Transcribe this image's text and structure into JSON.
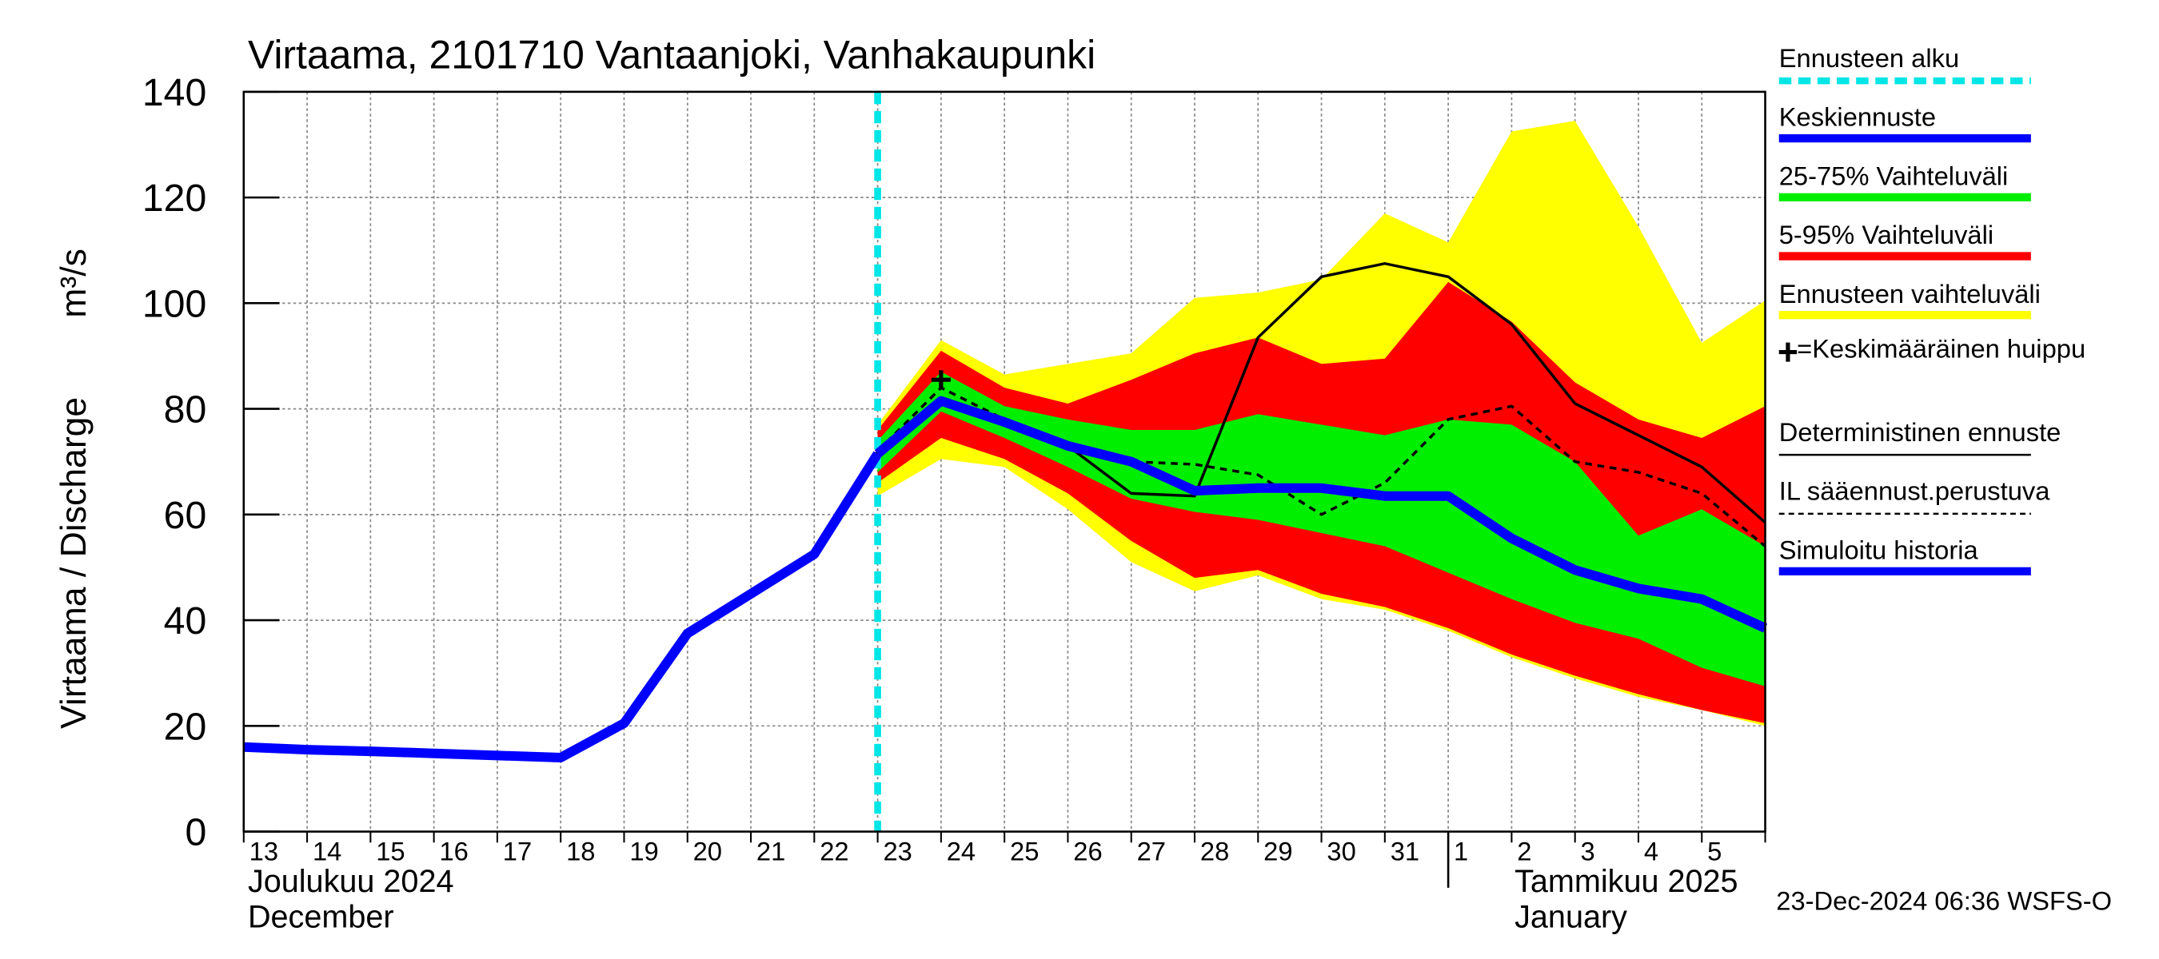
{
  "chart_data": {
    "type": "line",
    "title": "Virtaama, 2101710 Vantaanjoki, Vanhakaupunki",
    "y_label": "Virtaama / Discharge",
    "y_unit": "m³/s",
    "month_labels": [
      "Joulukuu  2024",
      "December",
      "Tammikuu  2025",
      "January"
    ],
    "footer": "23-Dec-2024 06:36 WSFS-O",
    "categories": [
      "13",
      "14",
      "15",
      "16",
      "17",
      "18",
      "19",
      "20",
      "21",
      "22",
      "23",
      "24",
      "25",
      "26",
      "27",
      "28",
      "29",
      "30",
      "31",
      "1",
      "2",
      "3",
      "4",
      "5",
      null
    ],
    "ylim": [
      0,
      140
    ],
    "yticks": [
      0,
      20,
      40,
      60,
      80,
      100,
      120,
      140
    ],
    "grid": true,
    "forecast_start": {
      "name": "Ennusteen alku",
      "category": "23",
      "color": "#00e5e5"
    },
    "peak": {
      "name": "=Keskimääräinen huippu",
      "category": "24",
      "value": 85.5
    },
    "bands": [
      {
        "name": "Ennusteen vaihteluväli",
        "color": "#ffff00",
        "low": [
          null,
          null,
          null,
          null,
          null,
          null,
          null,
          null,
          null,
          null,
          63.5,
          70.5,
          69,
          61,
          51,
          45.5,
          48.5,
          44,
          42,
          38,
          33,
          29,
          25.5,
          23,
          20
        ],
        "high": [
          null,
          null,
          null,
          null,
          null,
          null,
          null,
          null,
          null,
          null,
          77,
          93,
          86.5,
          88.5,
          90.5,
          101,
          102,
          104.5,
          117,
          111.5,
          132.5,
          134.5,
          114.5,
          92.5,
          100.5
        ]
      },
      {
        "name": "5-95% Vaihteluväli",
        "color": "#ff0000",
        "low": [
          null,
          null,
          null,
          null,
          null,
          null,
          null,
          null,
          null,
          null,
          66,
          74.5,
          70.5,
          64,
          55,
          48,
          49.5,
          45,
          42.5,
          38.5,
          33.5,
          29.5,
          26,
          23,
          20.5
        ],
        "high": [
          null,
          null,
          null,
          null,
          null,
          null,
          null,
          null,
          null,
          null,
          76,
          91,
          84,
          81,
          85.5,
          90.5,
          93.5,
          88.5,
          89.5,
          104,
          96.5,
          85,
          78,
          74.5,
          80.5
        ]
      },
      {
        "name": "25-75% Vaihteluväli",
        "color": "#00ee00",
        "low": [
          null,
          null,
          null,
          null,
          null,
          null,
          null,
          null,
          null,
          null,
          68,
          79.5,
          74.5,
          69,
          63,
          60.5,
          59,
          56.5,
          54,
          49,
          44,
          39.5,
          36.5,
          31,
          27.5
        ],
        "high": [
          null,
          null,
          null,
          null,
          null,
          null,
          null,
          null,
          null,
          null,
          74,
          87,
          80.5,
          78,
          76,
          76,
          79,
          77,
          75,
          78,
          77,
          70,
          56,
          61,
          54
        ]
      }
    ],
    "series": [
      {
        "name": "Deterministinen ennuste",
        "color": "#000000",
        "dash": false,
        "width": 2,
        "values": [
          null,
          null,
          null,
          null,
          null,
          null,
          null,
          null,
          null,
          52.5,
          72,
          82,
          78,
          73,
          64,
          63.5,
          93.5,
          105,
          107.5,
          105,
          96,
          81,
          75,
          69,
          58.5
        ]
      },
      {
        "name": "IL sääennust.perustuva",
        "color": "#000000",
        "dash": true,
        "width": 2,
        "values": [
          null,
          null,
          null,
          null,
          null,
          null,
          null,
          null,
          null,
          null,
          72,
          84,
          78,
          73,
          70,
          69.5,
          67.5,
          60,
          66,
          78,
          80.5,
          70,
          68,
          64,
          54
        ]
      },
      {
        "name": "Simuloitu historia",
        "color": "#0000ff",
        "dash": false,
        "width": 7,
        "values": [
          16,
          15.5,
          15.2,
          14.8,
          14.4,
          14,
          20.5,
          37.5,
          45,
          52.5,
          71.5,
          null,
          null,
          null,
          null,
          null,
          null,
          null,
          null,
          null,
          null,
          null,
          null,
          null,
          null
        ]
      },
      {
        "name": "Keskiennuste",
        "color": "#0000ff",
        "dash": false,
        "width": 7,
        "values": [
          null,
          null,
          null,
          null,
          null,
          null,
          null,
          null,
          null,
          null,
          71.5,
          81.5,
          77.5,
          73,
          70,
          64.5,
          65,
          65,
          63.5,
          63.5,
          55.5,
          49.5,
          46,
          44,
          38.5
        ]
      }
    ]
  }
}
